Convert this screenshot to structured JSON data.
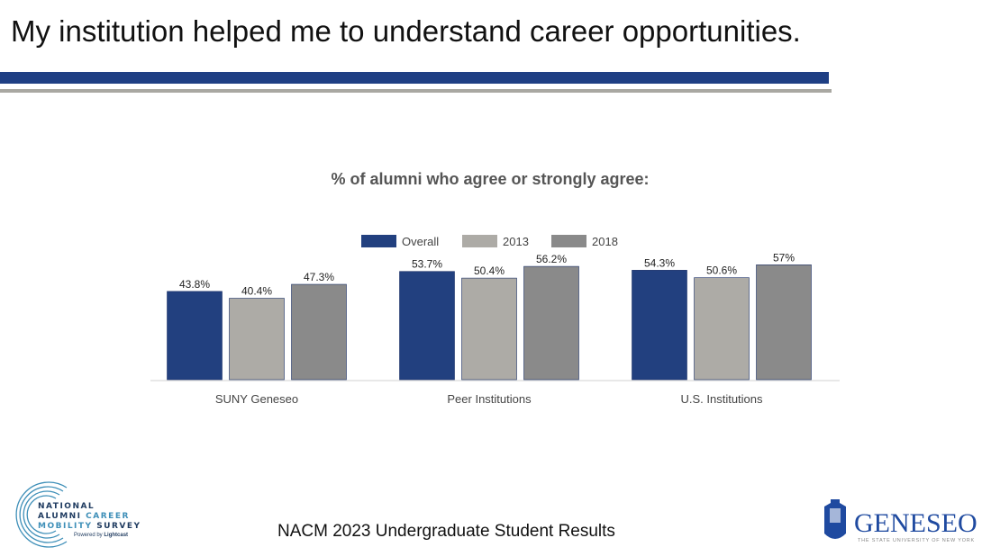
{
  "slide": {
    "title": "My institution helped me to understand career opportunities.",
    "footer": "NACM 2023 Undergraduate Student Results"
  },
  "logos": {
    "left": "NATIONAL ALUMNI CAREER MOBILITY SURVEY Powered by Lightcast",
    "right": "GENESEO THE STATE UNIVERSITY OF NEW YORK 1871"
  },
  "chart_data": {
    "type": "bar",
    "title": "% of alumni who agree or strongly agree:",
    "categories": [
      "SUNY Geneseo",
      "Peer Institutions",
      "U.S. Institutions"
    ],
    "series": [
      {
        "name": "Overall",
        "values": [
          43.8,
          53.7,
          54.3
        ],
        "labels": [
          "43.8%",
          "53.7%",
          "54.3%"
        ],
        "color": "#22407f"
      },
      {
        "name": "2013",
        "values": [
          40.4,
          50.4,
          50.6
        ],
        "labels": [
          "40.4%",
          "50.4%",
          "50.6%"
        ],
        "color": "#adaba6"
      },
      {
        "name": "2018",
        "values": [
          47.3,
          56.2,
          57
        ],
        "labels": [
          "47.3%",
          "56.2%",
          "57%"
        ],
        "color": "#8a8a8a"
      }
    ],
    "legend": "top-center",
    "grid": false,
    "yaxis_visible": false
  }
}
